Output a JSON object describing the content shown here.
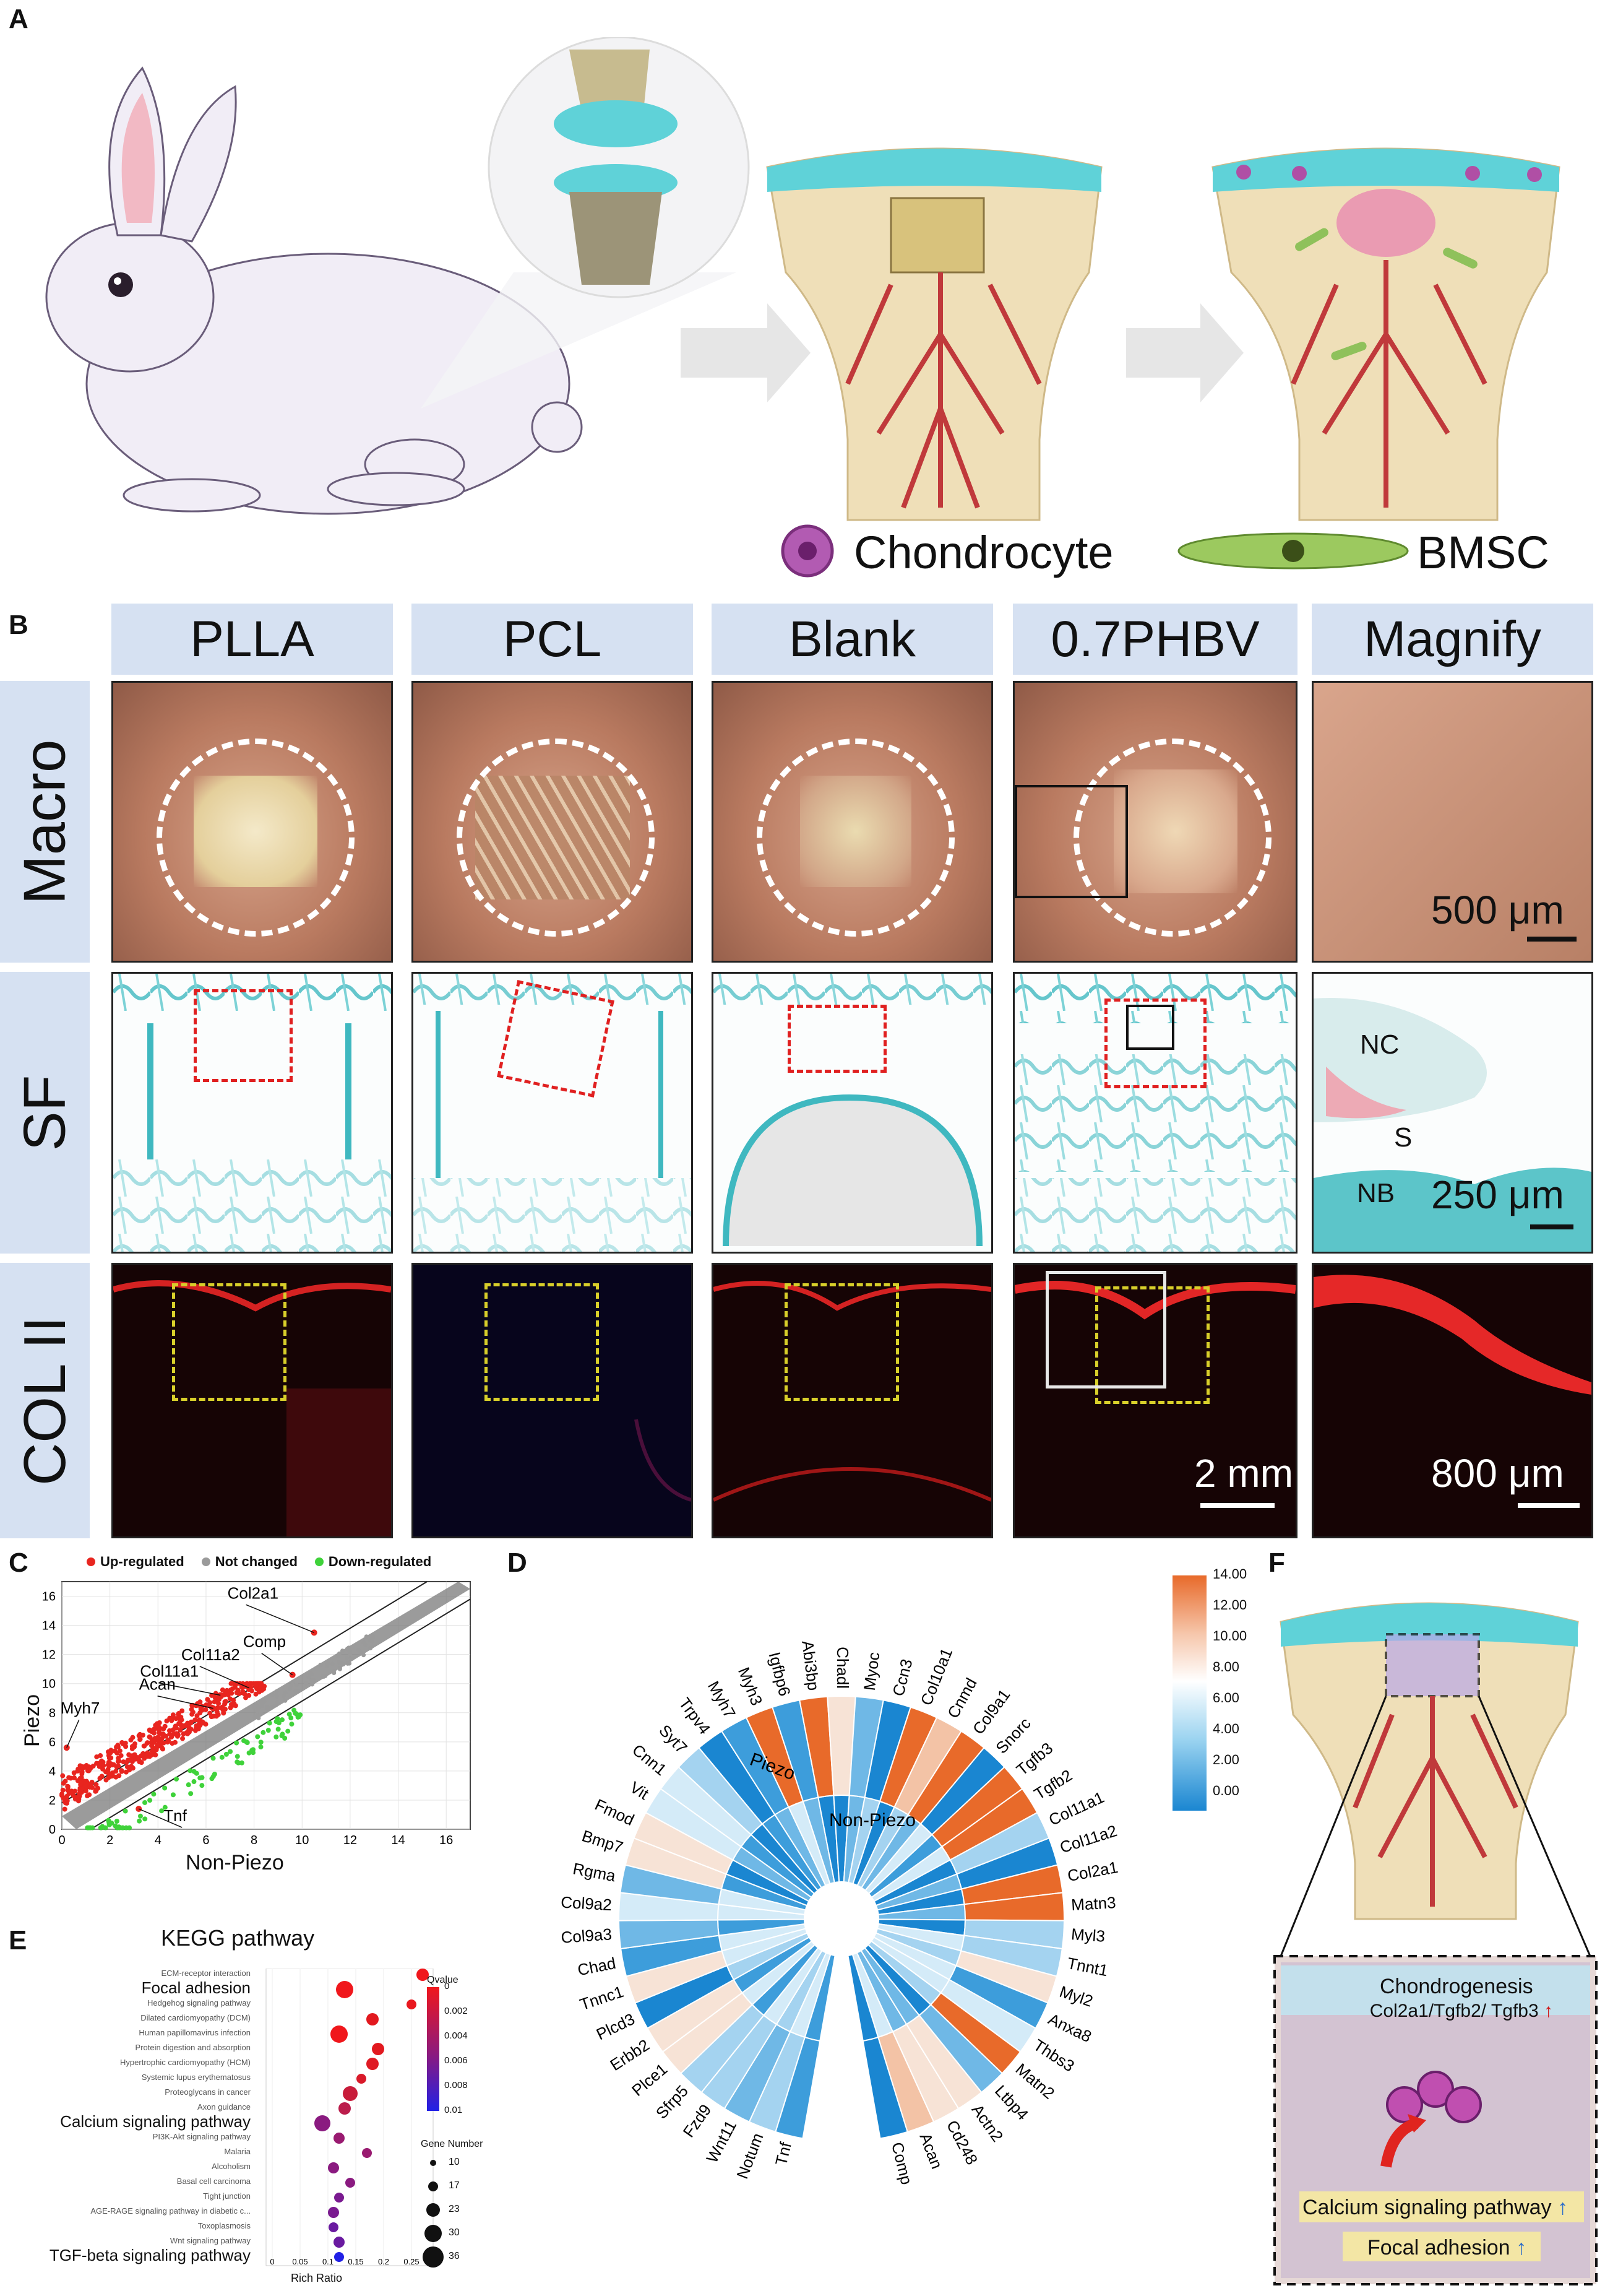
{
  "panels": {
    "A": "A",
    "B": "B",
    "C": "C",
    "D": "D",
    "E": "E",
    "F": "F"
  },
  "panelA": {
    "legend": {
      "chondrocyte": "Chondrocyte",
      "bmsc": "BMSC"
    }
  },
  "panelB": {
    "columns": [
      "PLLA",
      "PCL",
      "Blank",
      "0.7PHBV",
      "Magnify"
    ],
    "rows": [
      "Macro",
      "SF",
      "COL II"
    ],
    "scalebars": {
      "macro": "500 μm",
      "sf": "250 μm",
      "col_group": "2 mm",
      "col_mag": "800 μm"
    },
    "sf_labels": {
      "nc": "NC",
      "s": "S",
      "nb": "NB"
    }
  },
  "panelC": {
    "legend": {
      "up": "Up-regulated",
      "nc": "Not changed",
      "down": "Down-regulated"
    },
    "xlabel": "Non-Piezo",
    "ylabel": "Piezo",
    "ticks": [
      "0",
      "2",
      "4",
      "6",
      "8",
      "10",
      "12",
      "14",
      "16"
    ],
    "annotations": [
      "Col2a1",
      "Comp",
      "Col11a2",
      "Col11a1",
      "Acan",
      "Myh7",
      "Tnf"
    ]
  },
  "chart_data": {
    "type": "scatter",
    "xlabel": "Non-Piezo",
    "ylabel": "Piezo",
    "xlim": [
      0,
      17
    ],
    "ylim": [
      0,
      17
    ],
    "series": [
      {
        "name": "Up-regulated",
        "color": "#e8251f"
      },
      {
        "name": "Not changed",
        "color": "#9a9a9a"
      },
      {
        "name": "Down-regulated",
        "color": "#3fd23a"
      }
    ],
    "labeled_points": [
      {
        "label": "Col2a1",
        "x": 10.5,
        "y": 13.5
      },
      {
        "label": "Comp",
        "x": 9.6,
        "y": 10.6
      },
      {
        "label": "Col11a2",
        "x": 7.8,
        "y": 9.7
      },
      {
        "label": "Col11a1",
        "x": 6.6,
        "y": 9.2
      },
      {
        "label": "Acan",
        "x": 6.3,
        "y": 8.3
      },
      {
        "label": "Myh7",
        "x": 0.2,
        "y": 5.6
      },
      {
        "label": "Tnf",
        "x": 3.2,
        "y": 1.4
      }
    ]
  },
  "panelD": {
    "scale": [
      "14.00",
      "12.00",
      "10.00",
      "8.00",
      "6.00",
      "4.00",
      "2.00",
      "0.00"
    ],
    "ring_labels": {
      "outer": "Piezo",
      "inner": "Non-Piezo"
    },
    "genes": [
      "Tnf",
      "Notum",
      "Wnt11",
      "Fzd9",
      "Sfrp5",
      "Plce1",
      "Erbb2",
      "Plcd3",
      "Tnnc1",
      "Chad",
      "Col9a3",
      "Col9a2",
      "Rgma",
      "Bmp7",
      "Fmod",
      "Vit",
      "Cnn1",
      "Syt7",
      "Trpv4",
      "Myh7",
      "Myh3",
      "Igfbp6",
      "Abi3bp",
      "Chadl",
      "Myoc",
      "Ccn3",
      "Col10a1",
      "Cnmd",
      "Col9a1",
      "Snorc",
      "Tgfb3",
      "Tgfb2",
      "Col11a1",
      "Col11a2",
      "Col2a1",
      "Matn3",
      "Myl3",
      "Tnnt1",
      "Myl2",
      "Anxa8",
      "Thbs3",
      "Matn2",
      "Ltbp4",
      "Actn2",
      "Cd248",
      "Acan",
      "Comp"
    ]
  },
  "panelE": {
    "title": "KEGG pathway",
    "xlabel": "Rich Ratio",
    "xticks": [
      "0",
      "0.05",
      "0.1",
      "0.15",
      "0.2",
      "0.25"
    ],
    "terms": [
      "ECM-receptor interaction",
      "Focal adhesion",
      "Hedgehog signaling pathway",
      "Dilated cardiomyopathy (DCM)",
      "Human papillomavirus infection",
      "Protein digestion and absorption",
      "Hypertrophic cardiomyopathy (HCM)",
      "Systemic lupus erythematosus",
      "Proteoglycans in cancer",
      "Axon guidance",
      "Calcium signaling pathway",
      "PI3K-Akt signaling pathway",
      "Malaria",
      "Alcoholism",
      "Basal cell carcinoma",
      "Tight junction",
      "AGE-RAGE signaling pathway in diabetic c...",
      "Toxoplasmosis",
      "Wnt signaling pathway",
      "TGF-beta signaling pathway"
    ],
    "qvalue_title": "Qvalue",
    "qvalue_ticks": [
      "0",
      "0.002",
      "0.004",
      "0.006",
      "0.008",
      "0.01"
    ],
    "gene_title": "Gene Number",
    "gene_ticks": [
      "10",
      "17",
      "23",
      "30",
      "36"
    ]
  },
  "panelF": {
    "chondrogenesis": "Chondrogenesis",
    "genes": "Col2a1/Tgfb2/ Tgfb3",
    "calcium": "Calcium signaling pathway",
    "focal": "Focal adhesion"
  }
}
